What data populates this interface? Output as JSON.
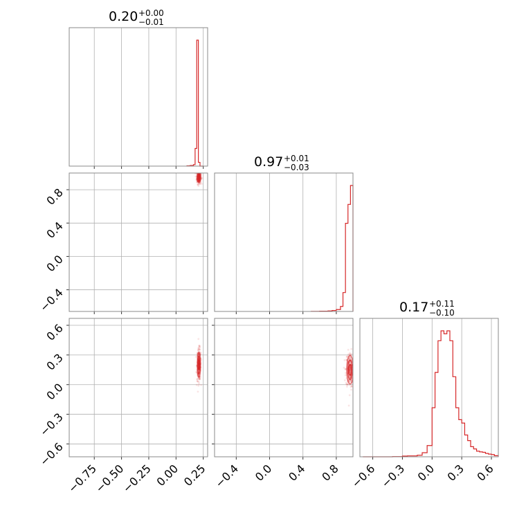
{
  "chart_data": {
    "type": "corner",
    "color": "#d62728",
    "grid": true,
    "panel_titles": [
      {
        "value": "0.20",
        "plus": "+0.00",
        "minus": "−0.01"
      },
      {
        "value": "0.97",
        "plus": "+0.01",
        "minus": "−0.03"
      },
      {
        "value": "0.17",
        "plus": "+0.11",
        "minus": "−0.10"
      }
    ],
    "param_ranges": {
      "p0": [
        -0.98,
        0.29
      ],
      "p1": [
        -0.66,
        1.0
      ],
      "p2": [
        -0.73,
        0.67
      ]
    },
    "ticks": {
      "p0": [
        "−0.75",
        "−0.50",
        "−0.25",
        "0.00",
        "0.25"
      ],
      "p1": [
        "−0.4",
        "0.0",
        "0.4",
        "0.8"
      ],
      "p2": [
        "−0.6",
        "−0.3",
        "0.0",
        "0.3",
        "0.6"
      ]
    },
    "tick_values": {
      "p0": [
        -0.75,
        -0.5,
        -0.25,
        0.0,
        0.25
      ],
      "p1": [
        -0.4,
        0.0,
        0.4,
        0.8
      ],
      "p2": [
        -0.6,
        -0.3,
        0.0,
        0.3,
        0.6
      ]
    },
    "hist_p0": {
      "edges": [
        0.1,
        0.13,
        0.16,
        0.175,
        0.19,
        0.205,
        0.22,
        0.235,
        0.25
      ],
      "counts": [
        2,
        5,
        12,
        140,
        1000,
        30,
        0,
        0
      ]
    },
    "hist_p1": {
      "edges": [
        0.5,
        0.6,
        0.7,
        0.75,
        0.8,
        0.85,
        0.88,
        0.91,
        0.94,
        0.97,
        1.0
      ],
      "counts": [
        1,
        2,
        4,
        8,
        15,
        40,
        150,
        700,
        850,
        1000
      ]
    },
    "hist_p2": {
      "edges": [
        -0.7,
        -0.4,
        -0.35,
        -0.3,
        -0.25,
        -0.2,
        -0.15,
        -0.1,
        -0.05,
        0.0,
        0.03,
        0.06,
        0.09,
        0.12,
        0.15,
        0.18,
        0.21,
        0.24,
        0.27,
        0.3,
        0.33,
        0.36,
        0.39,
        0.42,
        0.45,
        0.48,
        0.51,
        0.54,
        0.57,
        0.6,
        0.63,
        0.67
      ],
      "counts": [
        0,
        1,
        1,
        3,
        4,
        4,
        7,
        18,
        50,
        218,
        375,
        516,
        560,
        547,
        560,
        516,
        356,
        218,
        165,
        150,
        97,
        72,
        45,
        35,
        25,
        22,
        20,
        15,
        12,
        10,
        5
      ]
    },
    "pairs": [
      {
        "x": "p0",
        "y": "p1",
        "center": [
          0.21,
          0.95
        ],
        "spread": [
          0.01,
          0.04
        ]
      },
      {
        "x": "p0",
        "y": "p2",
        "center": [
          0.21,
          0.2
        ],
        "spread": [
          0.009,
          0.08
        ]
      },
      {
        "x": "p1",
        "y": "p2",
        "center": [
          0.965,
          0.15
        ],
        "spread": [
          0.025,
          0.09
        ]
      }
    ]
  }
}
